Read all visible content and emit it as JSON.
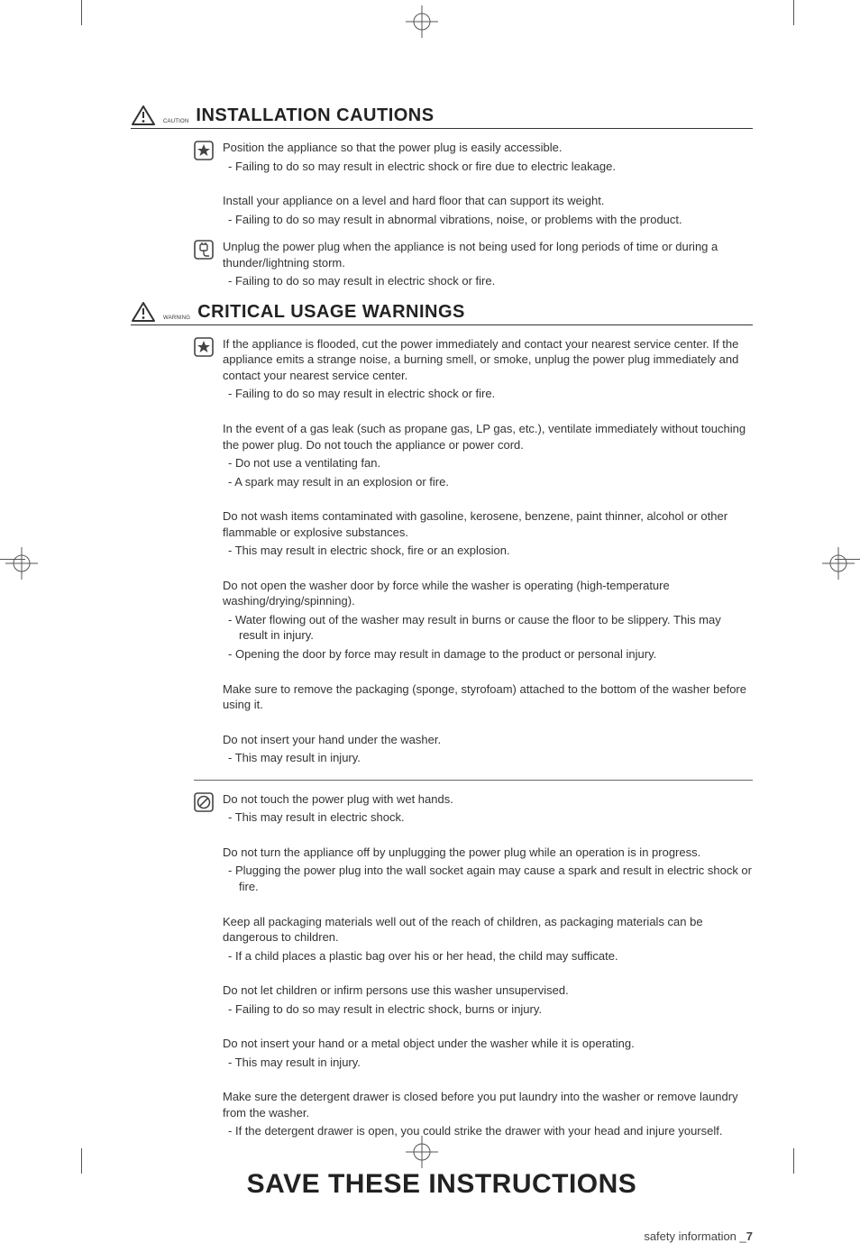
{
  "colors": {
    "text": "#333333",
    "heading": "#222222",
    "rule": "#333333",
    "background": "#ffffff",
    "icon_stroke": "#444444"
  },
  "typography": {
    "body_fontsize": 13,
    "heading_fontsize": 20,
    "save_fontsize": 30,
    "small_label_fontsize": 6,
    "line_height": 1.35
  },
  "sections": [
    {
      "icon_label": "CAUTION",
      "title": "INSTALLATION CAUTIONS",
      "groups": [
        {
          "icon": "star",
          "items": [
            {
              "lead": "Position the appliance so that the power plug is easily accessible.",
              "subs": [
                "Failing to do so may result in electric shock or fire due to electric leakage."
              ]
            },
            {
              "lead": "Install your appliance on a level and hard floor that can support its weight.",
              "subs": [
                "Failing to do so may result in abnormal vibrations, noise, or problems with the product."
              ]
            }
          ]
        },
        {
          "icon": "plug",
          "items": [
            {
              "lead": "Unplug the power plug when the appliance is not being used for long periods of time or during a thunder/lightning storm.",
              "subs": [
                "Failing to do so may result in electric shock or fire."
              ]
            }
          ]
        }
      ]
    },
    {
      "icon_label": "WARNING",
      "title": "CRITICAL USAGE WARNINGS",
      "groups": [
        {
          "icon": "star",
          "divider_after": true,
          "items": [
            {
              "lead": "If the appliance is flooded, cut the power immediately and contact your nearest service center. If the appliance emits a strange noise, a burning smell, or smoke, unplug the power plug immediately and contact your nearest service center.",
              "subs": [
                "Failing to do so may result in electric shock or fire."
              ]
            },
            {
              "lead": "In the event of a gas leak (such as propane gas, LP gas, etc.), ventilate immediately without touching the power plug. Do not touch the appliance or power cord.",
              "subs": [
                "Do not use a ventilating fan.",
                "A spark may result in an explosion or fire."
              ]
            },
            {
              "lead": "Do not wash items contaminated with gasoline, kerosene, benzene, paint thinner, alcohol or other flammable or explosive substances.",
              "subs": [
                "This may result in electric shock, fire or an explosion."
              ]
            },
            {
              "lead": "Do not open the washer door by force while the washer is operating (high-temperature washing/drying/spinning).",
              "subs": [
                "Water flowing out of the washer may result in burns or cause the floor to be slippery. This may result in injury.",
                "Opening the door by force may result in damage to the product or personal injury."
              ]
            },
            {
              "lead": "Make sure to remove the packaging (sponge, styrofoam) attached to the bottom of the washer before using it.",
              "subs": []
            },
            {
              "lead": "Do not insert your hand under the washer.",
              "subs": [
                "This may result in injury."
              ]
            }
          ]
        },
        {
          "icon": "prohibit",
          "items": [
            {
              "lead": "Do not touch the power plug with wet hands.",
              "subs": [
                "This may result in electric shock."
              ]
            },
            {
              "lead": "Do not turn the appliance off by unplugging the power plug while an operation is in progress.",
              "subs": [
                "Plugging the power plug into the wall socket again may cause a spark and result in electric shock or fire."
              ]
            },
            {
              "lead": "Keep all packaging materials well out of the reach of children, as packaging materials can be dangerous to children.",
              "subs": [
                "If a child places a plastic bag over his or her head, the child may sufficate."
              ]
            },
            {
              "lead": "Do not let children or infirm persons use this washer unsupervised.",
              "subs": [
                "Failing to do so may result in electric shock, burns or injury."
              ]
            },
            {
              "lead": "Do not insert your hand or a metal object under the washer while it is operating.",
              "subs": [
                "This may result in injury."
              ]
            },
            {
              "lead": "Make sure the detergent drawer is closed before you put laundry into the washer or remove laundry from the washer.",
              "subs": [
                "If the detergent drawer is open, you could strike the drawer with your head and injure yourself."
              ]
            }
          ]
        }
      ]
    }
  ],
  "save_line": "SAVE THESE INSTRUCTIONS",
  "footer": {
    "text": "safety information  _",
    "page": "7"
  }
}
